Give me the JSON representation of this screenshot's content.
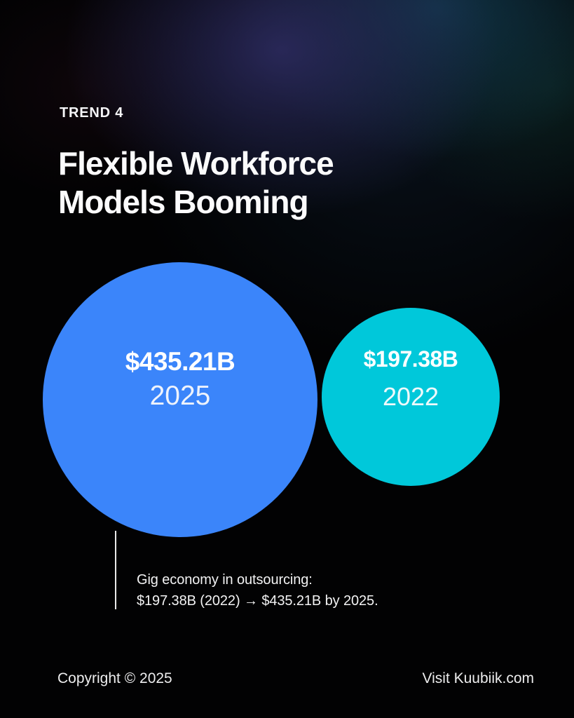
{
  "page": {
    "eyebrow": "TREND 4",
    "title_line1": "Flexible Workforce",
    "title_line2": "Models Booming"
  },
  "chart_data": {
    "type": "bubble",
    "title": "Flexible Workforce Models Booming",
    "unit": "USD billions",
    "series": [
      {
        "name": "2025",
        "value": 435.21,
        "label": "$435.21B",
        "color": "#3b85fa",
        "position": "left-large"
      },
      {
        "name": "2022",
        "value": 197.38,
        "label": "$197.38B",
        "color": "#00c8da",
        "position": "right-small"
      }
    ],
    "layout": "two proportional-area circles on black background, values centered inside"
  },
  "annotation": {
    "line1": "Gig economy in outsourcing:",
    "line2": "$197.38B (2022) → $435.21B by 2025."
  },
  "footer": {
    "copyright": "Copyright © 2025",
    "link": "Visit Kuubiik.com"
  },
  "colors": {
    "background": "#020203",
    "bubble_2025": "#3b85fa",
    "bubble_2022": "#00c8da",
    "text": "#ffffff",
    "glow_purple": "#2c2a5c",
    "glow_blue": "#123a50",
    "glow_teal": "#103630"
  }
}
